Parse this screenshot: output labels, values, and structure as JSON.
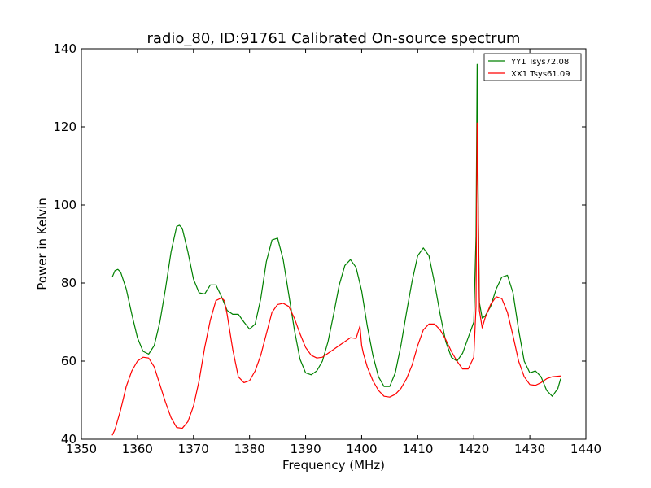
{
  "chart_data": {
    "type": "line",
    "title": "radio_80, ID:91761 Calibrated On-source spectrum",
    "xlabel": "Frequency (MHz)",
    "ylabel": "Power in Kelvin",
    "xlim": [
      1350,
      1440
    ],
    "ylim": [
      40,
      140
    ],
    "xticks": [
      1350,
      1360,
      1370,
      1380,
      1390,
      1400,
      1410,
      1420,
      1430,
      1440
    ],
    "yticks": [
      40,
      60,
      80,
      100,
      120,
      140
    ],
    "grid": false,
    "legend_position": "top-right",
    "series": [
      {
        "name": "YY1 Tsys72.08",
        "color": "#008000",
        "x": [
          1355.5,
          1356.0,
          1356.5,
          1357.0,
          1358.0,
          1359.0,
          1360.0,
          1361.0,
          1362.0,
          1363.0,
          1364.0,
          1365.0,
          1366.0,
          1367.0,
          1367.5,
          1368.0,
          1369.0,
          1370.0,
          1371.0,
          1372.0,
          1373.0,
          1374.0,
          1375.0,
          1376.0,
          1377.0,
          1378.0,
          1379.0,
          1380.0,
          1381.0,
          1382.0,
          1383.0,
          1384.0,
          1385.0,
          1386.0,
          1387.0,
          1388.0,
          1389.0,
          1390.0,
          1391.0,
          1392.0,
          1393.0,
          1394.0,
          1395.0,
          1396.0,
          1397.0,
          1398.0,
          1399.0,
          1400.0,
          1401.0,
          1402.0,
          1403.0,
          1404.0,
          1405.0,
          1406.0,
          1407.0,
          1408.0,
          1409.0,
          1410.0,
          1411.0,
          1412.0,
          1413.0,
          1414.0,
          1415.0,
          1416.0,
          1417.0,
          1418.0,
          1419.0,
          1420.0,
          1420.4,
          1420.6,
          1420.8,
          1421.0,
          1421.5,
          1422.0,
          1423.0,
          1424.0,
          1425.0,
          1426.0,
          1427.0,
          1428.0,
          1429.0,
          1430.0,
          1431.0,
          1432.0,
          1433.0,
          1434.0,
          1435.0
        ],
        "y": [
          81.5,
          83.2,
          83.5,
          82.8,
          78.5,
          72.0,
          66.0,
          62.5,
          61.8,
          64.0,
          70.0,
          78.5,
          88.0,
          94.5,
          94.8,
          94.0,
          88.0,
          81.0,
          77.5,
          77.2,
          79.5,
          79.5,
          76.5,
          73.0,
          72.0,
          72.0,
          70.0,
          68.2,
          69.5,
          76.0,
          85.5,
          91.0,
          91.5,
          86.0,
          77.0,
          68.0,
          60.5,
          57.0,
          56.5,
          57.5,
          60.0,
          65.0,
          72.0,
          79.5,
          84.5,
          86.0,
          84.0,
          78.0,
          69.0,
          61.5,
          56.0,
          53.5,
          53.5,
          57.0,
          64.0,
          72.5,
          80.5,
          87.0,
          89.0,
          87.0,
          80.0,
          72.0,
          65.0,
          61.0,
          60.0,
          62.0,
          66.0,
          70.0,
          92.0,
          136.0,
          100.0,
          75.0,
          71.0,
          71.5,
          74.0,
          78.5,
          81.5,
          82.0,
          77.5,
          68.0,
          60.0,
          57.0,
          57.5,
          56.0,
          52.5,
          51.0,
          53.0
        ],
        "y_end": 55.5
      },
      {
        "name": "XX1 Tsys61.09",
        "color": "#ff0000",
        "x": [
          1355.5,
          1356.0,
          1357.0,
          1358.0,
          1359.0,
          1360.0,
          1361.0,
          1362.0,
          1363.0,
          1364.0,
          1365.0,
          1366.0,
          1367.0,
          1368.0,
          1369.0,
          1370.0,
          1371.0,
          1372.0,
          1373.0,
          1374.0,
          1375.0,
          1375.5,
          1376.0,
          1377.0,
          1378.0,
          1379.0,
          1380.0,
          1381.0,
          1382.0,
          1383.0,
          1384.0,
          1385.0,
          1386.0,
          1387.0,
          1388.0,
          1389.0,
          1390.0,
          1391.0,
          1392.0,
          1393.0,
          1394.0,
          1395.0,
          1396.0,
          1397.0,
          1398.0,
          1399.0,
          1399.7,
          1400.0,
          1400.3,
          1401.0,
          1402.0,
          1403.0,
          1404.0,
          1405.0,
          1406.0,
          1407.0,
          1408.0,
          1409.0,
          1410.0,
          1411.0,
          1412.0,
          1413.0,
          1414.0,
          1415.0,
          1416.0,
          1417.0,
          1418.0,
          1419.0,
          1420.0,
          1420.4,
          1420.6,
          1420.8,
          1421.0,
          1421.5,
          1422.0,
          1423.0,
          1424.0,
          1425.0,
          1426.0,
          1427.0,
          1428.0,
          1429.0,
          1430.0,
          1431.0,
          1432.0,
          1433.0,
          1434.0
        ],
        "y": [
          41.0,
          42.5,
          47.5,
          53.5,
          57.5,
          60.0,
          61.0,
          60.8,
          58.5,
          54.0,
          49.5,
          45.5,
          43.0,
          42.8,
          44.5,
          48.5,
          55.0,
          63.5,
          70.5,
          75.5,
          76.2,
          75.5,
          72.0,
          63.0,
          56.0,
          54.5,
          55.0,
          57.5,
          61.5,
          67.0,
          72.5,
          74.5,
          74.8,
          74.0,
          71.0,
          67.0,
          63.5,
          61.5,
          60.8,
          61.0,
          62.0,
          63.0,
          64.0,
          65.0,
          66.0,
          65.8,
          69.0,
          64.0,
          62.0,
          58.5,
          55.0,
          52.5,
          51.0,
          50.8,
          51.5,
          53.0,
          55.5,
          59.0,
          64.0,
          68.0,
          69.5,
          69.5,
          68.0,
          65.5,
          62.5,
          60.0,
          58.0,
          58.0,
          61.0,
          74.0,
          121.0,
          98.0,
          73.0,
          68.5,
          71.0,
          74.5,
          76.5,
          76.0,
          72.5,
          66.5,
          60.0,
          56.0,
          54.0,
          53.8,
          54.5,
          55.5,
          56.0
        ],
        "y_end": 56.2
      }
    ]
  }
}
